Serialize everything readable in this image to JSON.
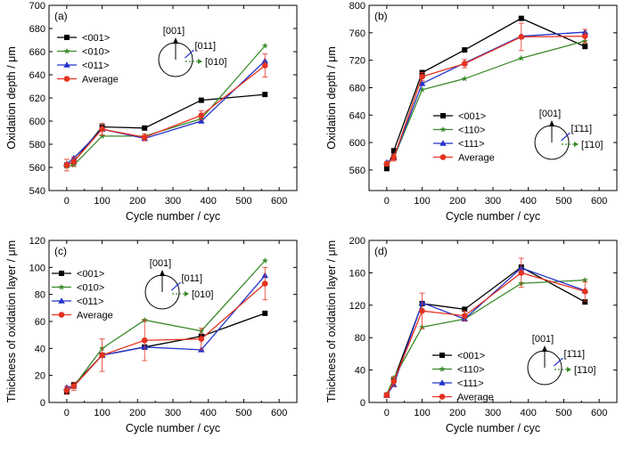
{
  "colors": {
    "s001": "#000000",
    "s010": "#3a8a2a",
    "s011": "#2233cc",
    "avg": "#e53320"
  },
  "chart_data": [
    {
      "type": "line",
      "panel_label": "(a)",
      "xlabel": "Cycle number / cyc",
      "ylabel": "Oxidation depth / μm",
      "xlim": [
        -50,
        650
      ],
      "ylim": [
        540,
        700
      ],
      "xticks": [
        0,
        100,
        200,
        300,
        400,
        500,
        600
      ],
      "yticks": [
        540,
        560,
        580,
        600,
        620,
        640,
        660,
        680,
        700
      ],
      "x": [
        0,
        20,
        100,
        220,
        380,
        560
      ],
      "legend_position": "top-left",
      "series": [
        {
          "name": "<001>",
          "color": "#000000",
          "marker": "square",
          "values": [
            562,
            565,
            595,
            594,
            618,
            623
          ]
        },
        {
          "name": "<010>",
          "color": "#3a8a2a",
          "marker": "star",
          "values": [
            561,
            562,
            587,
            587,
            602,
            665
          ]
        },
        {
          "name": "<011>",
          "color": "#2233cc",
          "marker": "triangle",
          "values": [
            563,
            568,
            593,
            585,
            600,
            652
          ]
        },
        {
          "name": "Average",
          "color": "#e53320",
          "marker": "circle",
          "values": [
            562,
            565,
            593,
            586,
            605,
            648
          ],
          "errors": [
            5,
            4,
            5,
            3,
            4,
            10
          ]
        }
      ],
      "inset": {
        "up_label": "[001]",
        "diag_label": "[011]",
        "right_label": "[010]",
        "diag_color": "#2233cc",
        "right_color": "#3a8a2a"
      }
    },
    {
      "type": "line",
      "panel_label": "(b)",
      "xlabel": "Cycle number / cyc",
      "ylabel": "Oxidation depth / μm",
      "xlim": [
        -50,
        650
      ],
      "ylim": [
        530,
        800
      ],
      "xticks": [
        0,
        100,
        200,
        300,
        400,
        500,
        600
      ],
      "yticks": [
        560,
        600,
        640,
        680,
        720,
        760,
        800
      ],
      "x": [
        0,
        20,
        100,
        220,
        380,
        560
      ],
      "legend_position": "center-left",
      "series": [
        {
          "name": "<001>",
          "color": "#000000",
          "marker": "square",
          "values": [
            562,
            588,
            702,
            735,
            781,
            740
          ]
        },
        {
          "name": "<110>",
          "color": "#3a8a2a",
          "marker": "star",
          "values": [
            568,
            578,
            677,
            693,
            723,
            748
          ]
        },
        {
          "name": "<111>",
          "color": "#2233cc",
          "marker": "triangle",
          "values": [
            571,
            578,
            686,
            716,
            755,
            761
          ]
        },
        {
          "name": "Average",
          "color": "#e53320",
          "marker": "circle",
          "values": [
            569,
            578,
            696,
            715,
            754,
            755
          ],
          "errors": [
            3,
            5,
            6,
            6,
            20,
            10
          ]
        }
      ],
      "inset": {
        "up_label": "[001]",
        "diag_label": "[1̄11]",
        "right_label": "[1̄10]",
        "diag_color": "#2233cc",
        "right_color": "#3a8a2a"
      }
    },
    {
      "type": "line",
      "panel_label": "(c)",
      "xlabel": "Cycle number / cyc",
      "ylabel": "Thickness of oxidation layer / μm",
      "xlim": [
        -50,
        650
      ],
      "ylim": [
        0,
        120
      ],
      "xticks": [
        0,
        100,
        200,
        300,
        400,
        500,
        600
      ],
      "yticks": [
        0,
        20,
        40,
        60,
        80,
        100,
        120
      ],
      "x": [
        0,
        20,
        100,
        220,
        380,
        560
      ],
      "legend_position": "top-left",
      "series": [
        {
          "name": "<001>",
          "color": "#000000",
          "marker": "square",
          "values": [
            8,
            13,
            35,
            41,
            49,
            66
          ]
        },
        {
          "name": "<010>",
          "color": "#3a8a2a",
          "marker": "star",
          "values": [
            9,
            12,
            40,
            61,
            53,
            105
          ]
        },
        {
          "name": "<011>",
          "color": "#2233cc",
          "marker": "triangle",
          "values": [
            11,
            12,
            35,
            41,
            39,
            94
          ]
        },
        {
          "name": "Average",
          "color": "#e53320",
          "marker": "circle",
          "values": [
            9,
            12,
            35,
            46,
            47,
            88
          ],
          "errors": [
            3,
            3,
            12,
            15,
            8,
            12
          ]
        }
      ],
      "inset": {
        "up_label": "[001]",
        "diag_label": "[011]",
        "right_label": "[010]",
        "diag_color": "#2233cc",
        "right_color": "#3a8a2a"
      }
    },
    {
      "type": "line",
      "panel_label": "(d)",
      "xlabel": "Cycle number / cyc",
      "ylabel": "Thickness of oxidation layer / μm",
      "xlim": [
        -50,
        650
      ],
      "ylim": [
        0,
        200
      ],
      "xticks": [
        0,
        100,
        200,
        300,
        400,
        500,
        600
      ],
      "yticks": [
        0,
        40,
        80,
        120,
        160,
        200
      ],
      "x": [
        0,
        20,
        100,
        220,
        380,
        560
      ],
      "legend_position": "bottom-center",
      "series": [
        {
          "name": "<001>",
          "color": "#000000",
          "marker": "square",
          "values": [
            9,
            28,
            122,
            115,
            167,
            124
          ]
        },
        {
          "name": "<110>",
          "color": "#3a8a2a",
          "marker": "star",
          "values": [
            10,
            30,
            93,
            103,
            147,
            151
          ]
        },
        {
          "name": "<111>",
          "color": "#2233cc",
          "marker": "triangle",
          "values": [
            9,
            22,
            123,
            103,
            166,
            138
          ]
        },
        {
          "name": "Average",
          "color": "#e53320",
          "marker": "circle",
          "values": [
            9,
            26,
            113,
            107,
            160,
            137
          ],
          "errors": [
            3,
            6,
            22,
            6,
            18,
            12
          ]
        }
      ],
      "inset": {
        "up_label": "[001]",
        "diag_label": "[1̄11]",
        "right_label": "[1̄10]",
        "diag_color": "#2233cc",
        "right_color": "#3a8a2a"
      }
    }
  ]
}
